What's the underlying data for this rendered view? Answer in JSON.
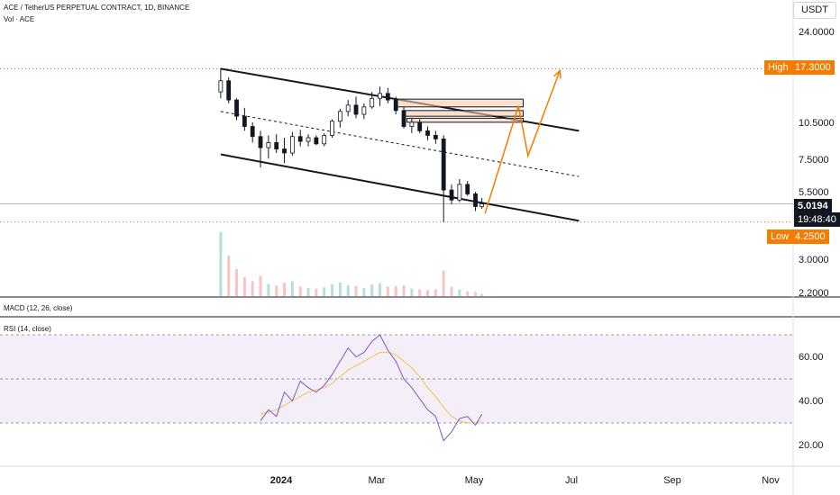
{
  "header": {
    "symbol_line": "ACE / TetherUS PERPETUAL CONTRACT, 1D, BINANCE",
    "volume_label": "Vol · ACE",
    "currency": "USDT"
  },
  "price_axis": {
    "ticks": [
      "24.0000",
      "10.5000",
      "7.5000",
      "5.5000",
      "3.0000",
      "2.2000"
    ]
  },
  "markers": {
    "high_label": "High",
    "high_value": "17.3000",
    "low_label": "Low",
    "low_value": "4.2500",
    "current_price": "5.0194",
    "countdown": "19:48:40"
  },
  "panes": {
    "macd_label": "MACD (12, 26, close)",
    "rsi_label": "RSI (14, close)",
    "rsi_ticks": [
      "60.00",
      "40.00",
      "20.00"
    ]
  },
  "time_axis": {
    "labels": [
      "2024",
      "Mar",
      "May",
      "Jul",
      "Sep",
      "Nov"
    ]
  },
  "colors": {
    "up": "#26a69a",
    "down": "#ef5350",
    "orange": "#f57c00",
    "rsi_line": "#7e57c2",
    "rsi_band": "#f3eef8"
  },
  "chart_data": {
    "type": "candlestick",
    "price_scale": "log",
    "ohlc": [
      {
        "t": "2023-11-24",
        "o": 14.0,
        "h": 17.3,
        "l": 13.2,
        "c": 15.5
      },
      {
        "t": "2023-11-29",
        "o": 15.5,
        "h": 16.0,
        "l": 12.6,
        "c": 13.0
      },
      {
        "t": "2023-12-04",
        "o": 13.0,
        "h": 13.2,
        "l": 10.8,
        "c": 11.2
      },
      {
        "t": "2023-12-09",
        "o": 11.2,
        "h": 12.1,
        "l": 9.8,
        "c": 10.2
      },
      {
        "t": "2023-12-14",
        "o": 10.2,
        "h": 10.6,
        "l": 8.8,
        "c": 9.3
      },
      {
        "t": "2023-12-19",
        "o": 9.3,
        "h": 9.8,
        "l": 7.0,
        "c": 8.4
      },
      {
        "t": "2023-12-24",
        "o": 8.4,
        "h": 9.4,
        "l": 7.6,
        "c": 8.8
      },
      {
        "t": "2023-12-29",
        "o": 8.8,
        "h": 9.5,
        "l": 8.0,
        "c": 8.3
      },
      {
        "t": "2024-01-03",
        "o": 8.3,
        "h": 9.2,
        "l": 7.3,
        "c": 8.0
      },
      {
        "t": "2024-01-08",
        "o": 8.0,
        "h": 9.7,
        "l": 7.8,
        "c": 9.3
      },
      {
        "t": "2024-01-13",
        "o": 9.3,
        "h": 9.9,
        "l": 8.5,
        "c": 8.9
      },
      {
        "t": "2024-01-18",
        "o": 8.9,
        "h": 9.5,
        "l": 8.5,
        "c": 9.2
      },
      {
        "t": "2024-01-23",
        "o": 9.2,
        "h": 9.4,
        "l": 8.6,
        "c": 8.7
      },
      {
        "t": "2024-01-28",
        "o": 8.7,
        "h": 9.6,
        "l": 8.5,
        "c": 9.4
      },
      {
        "t": "2024-02-02",
        "o": 9.4,
        "h": 10.9,
        "l": 9.2,
        "c": 10.7
      },
      {
        "t": "2024-02-07",
        "o": 10.7,
        "h": 12.0,
        "l": 10.1,
        "c": 11.7
      },
      {
        "t": "2024-02-12",
        "o": 11.7,
        "h": 13.0,
        "l": 11.2,
        "c": 12.4
      },
      {
        "t": "2024-02-17",
        "o": 12.4,
        "h": 13.4,
        "l": 11.0,
        "c": 11.4
      },
      {
        "t": "2024-02-22",
        "o": 11.4,
        "h": 12.6,
        "l": 10.9,
        "c": 12.2
      },
      {
        "t": "2024-02-27",
        "o": 12.2,
        "h": 14.0,
        "l": 12.0,
        "c": 13.2
      },
      {
        "t": "2024-03-03",
        "o": 13.2,
        "h": 14.7,
        "l": 12.3,
        "c": 13.8
      },
      {
        "t": "2024-03-08",
        "o": 13.8,
        "h": 14.5,
        "l": 12.6,
        "c": 13.0
      },
      {
        "t": "2024-03-13",
        "o": 13.0,
        "h": 13.4,
        "l": 11.4,
        "c": 11.8
      },
      {
        "t": "2024-03-18",
        "o": 11.8,
        "h": 12.2,
        "l": 10.0,
        "c": 10.2
      },
      {
        "t": "2024-03-23",
        "o": 10.2,
        "h": 11.0,
        "l": 9.6,
        "c": 10.6
      },
      {
        "t": "2024-03-28",
        "o": 10.6,
        "h": 10.9,
        "l": 9.6,
        "c": 9.8
      },
      {
        "t": "2024-04-02",
        "o": 9.8,
        "h": 10.2,
        "l": 9.0,
        "c": 9.4
      },
      {
        "t": "2024-04-07",
        "o": 9.4,
        "h": 9.8,
        "l": 8.7,
        "c": 9.1
      },
      {
        "t": "2024-04-12",
        "o": 9.1,
        "h": 9.4,
        "l": 4.25,
        "c": 5.7
      },
      {
        "t": "2024-04-17",
        "o": 5.7,
        "h": 6.0,
        "l": 5.0,
        "c": 5.2
      },
      {
        "t": "2024-04-22",
        "o": 5.2,
        "h": 6.3,
        "l": 5.1,
        "c": 6.0
      },
      {
        "t": "2024-04-27",
        "o": 6.0,
        "h": 6.2,
        "l": 5.4,
        "c": 5.5
      },
      {
        "t": "2024-05-02",
        "o": 5.5,
        "h": 5.6,
        "l": 4.7,
        "c": 4.9
      },
      {
        "t": "2024-05-06",
        "o": 4.9,
        "h": 5.3,
        "l": 4.8,
        "c": 5.0194
      }
    ],
    "volume": [
      {
        "t": "2023-11-24",
        "v": 95,
        "up": true
      },
      {
        "t": "2023-11-29",
        "v": 60,
        "up": false
      },
      {
        "t": "2023-12-04",
        "v": 40,
        "up": false
      },
      {
        "t": "2023-12-09",
        "v": 28,
        "up": false
      },
      {
        "t": "2023-12-14",
        "v": 22,
        "up": false
      },
      {
        "t": "2023-12-19",
        "v": 30,
        "up": false
      },
      {
        "t": "2023-12-24",
        "v": 18,
        "up": true
      },
      {
        "t": "2023-12-29",
        "v": 16,
        "up": false
      },
      {
        "t": "2024-01-03",
        "v": 20,
        "up": false
      },
      {
        "t": "2024-01-08",
        "v": 22,
        "up": true
      },
      {
        "t": "2024-01-13",
        "v": 14,
        "up": false
      },
      {
        "t": "2024-01-18",
        "v": 12,
        "up": true
      },
      {
        "t": "2024-01-23",
        "v": 11,
        "up": false
      },
      {
        "t": "2024-01-28",
        "v": 13,
        "up": true
      },
      {
        "t": "2024-02-02",
        "v": 18,
        "up": true
      },
      {
        "t": "2024-02-07",
        "v": 20,
        "up": true
      },
      {
        "t": "2024-02-12",
        "v": 16,
        "up": true
      },
      {
        "t": "2024-02-17",
        "v": 15,
        "up": false
      },
      {
        "t": "2024-02-22",
        "v": 12,
        "up": true
      },
      {
        "t": "2024-02-27",
        "v": 17,
        "up": true
      },
      {
        "t": "2024-03-03",
        "v": 19,
        "up": true
      },
      {
        "t": "2024-03-08",
        "v": 14,
        "up": false
      },
      {
        "t": "2024-03-13",
        "v": 15,
        "up": false
      },
      {
        "t": "2024-03-18",
        "v": 16,
        "up": false
      },
      {
        "t": "2024-03-23",
        "v": 11,
        "up": true
      },
      {
        "t": "2024-03-28",
        "v": 10,
        "up": false
      },
      {
        "t": "2024-04-02",
        "v": 9,
        "up": false
      },
      {
        "t": "2024-04-07",
        "v": 10,
        "up": false
      },
      {
        "t": "2024-04-12",
        "v": 38,
        "up": false
      },
      {
        "t": "2024-04-17",
        "v": 14,
        "up": false
      },
      {
        "t": "2024-04-22",
        "v": 10,
        "up": true
      },
      {
        "t": "2024-04-27",
        "v": 7,
        "up": false
      },
      {
        "t": "2024-05-02",
        "v": 6,
        "up": false
      },
      {
        "t": "2024-05-06",
        "v": 3,
        "up": true
      }
    ],
    "rsi": {
      "t": [
        "2023-12-19",
        "2023-12-24",
        "2023-12-29",
        "2024-01-03",
        "2024-01-08",
        "2024-01-13",
        "2024-01-18",
        "2024-01-23",
        "2024-01-28",
        "2024-02-02",
        "2024-02-07",
        "2024-02-12",
        "2024-02-17",
        "2024-02-22",
        "2024-02-27",
        "2024-03-03",
        "2024-03-08",
        "2024-03-13",
        "2024-03-18",
        "2024-03-23",
        "2024-03-28",
        "2024-04-02",
        "2024-04-07",
        "2024-04-12",
        "2024-04-17",
        "2024-04-22",
        "2024-04-27",
        "2024-05-02",
        "2024-05-06"
      ],
      "values": [
        31,
        36,
        33,
        44,
        40,
        49,
        46,
        44,
        47,
        52,
        58,
        64,
        60,
        62,
        67,
        70,
        63,
        58,
        50,
        46,
        41,
        36,
        33,
        22,
        26,
        32,
        33,
        29,
        34
      ],
      "ma": [
        34,
        35,
        36,
        38,
        40,
        42,
        44,
        45,
        46,
        48,
        51,
        54,
        56,
        58,
        60,
        62,
        62,
        61,
        58,
        55,
        51,
        46,
        42,
        37,
        33,
        31,
        30,
        30,
        31
      ]
    },
    "rsi_levels": {
      "upper": 70,
      "middle": 50,
      "lower": 30
    },
    "channel": {
      "upper": [
        {
          "t": "2023-11-24",
          "p": 17.3
        },
        {
          "t": "2024-07-06",
          "p": 9.8
        }
      ],
      "middle": [
        {
          "t": "2023-11-24",
          "p": 11.7
        },
        {
          "t": "2024-07-06",
          "p": 6.45
        }
      ],
      "lower": [
        {
          "t": "2023-11-24",
          "p": 7.9
        },
        {
          "t": "2024-07-06",
          "p": 4.3
        }
      ]
    },
    "zones": [
      {
        "t0": "2024-03-14",
        "t1": "2024-06-01",
        "p0": 12.2,
        "p1": 13.1
      },
      {
        "t0": "2024-03-18",
        "t1": "2024-06-01",
        "p0": 11.2,
        "p1": 11.8
      },
      {
        "t0": "2024-03-20",
        "t1": "2024-06-01",
        "p0": 10.6,
        "p1": 11.0
      }
    ],
    "projection": [
      {
        "t": "2024-05-08",
        "p": 4.6
      },
      {
        "t": "2024-05-29",
        "p": 12.3
      },
      {
        "t": "2024-06-04",
        "p": 7.8
      },
      {
        "t": "2024-06-24",
        "p": 17.0
      }
    ],
    "high": 17.3,
    "low": 4.25,
    "last": 5.0194
  }
}
